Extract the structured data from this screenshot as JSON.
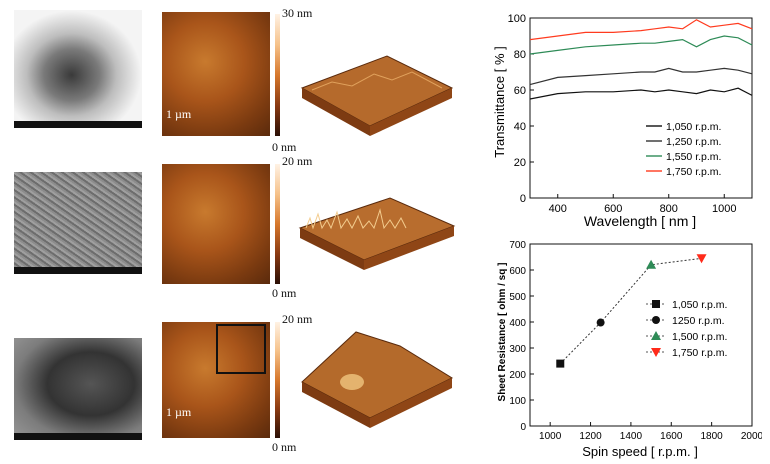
{
  "panels": {
    "afm": [
      {
        "scale_max": "30 nm",
        "scale_min": "0 nm",
        "scale_bar": "1 µm"
      },
      {
        "scale_max": "20 nm",
        "scale_min": "0 nm",
        "scale_bar": ""
      },
      {
        "scale_max": "20 nm",
        "scale_min": "0 nm",
        "scale_bar": "1 µm"
      }
    ]
  },
  "chart_data": [
    {
      "type": "line",
      "xlabel": "Wavelength [ nm ]",
      "ylabel": "Transmittance [ % ]",
      "xlim": [
        300,
        1100
      ],
      "ylim": [
        0,
        100
      ],
      "xticks": [
        400,
        600,
        800,
        1000
      ],
      "yticks": [
        0,
        20,
        40,
        60,
        80,
        100
      ],
      "legend_position": "bottom-right",
      "x": [
        300,
        400,
        500,
        600,
        700,
        750,
        800,
        850,
        900,
        950,
        1000,
        1050,
        1100
      ],
      "series": [
        {
          "name": "1,050 r.p.m.",
          "color": "#111111",
          "values": [
            55,
            58,
            59,
            59,
            60,
            59,
            60,
            59,
            58,
            60,
            59,
            61,
            57
          ]
        },
        {
          "name": "1,250 r.p.m.",
          "color": "#333333",
          "values": [
            63,
            67,
            68,
            69,
            70,
            70,
            72,
            70,
            70,
            71,
            72,
            71,
            69
          ]
        },
        {
          "name": "1,550 r.p.m.",
          "color": "#2e8b57",
          "values": [
            80,
            82,
            84,
            85,
            86,
            86,
            87,
            88,
            84,
            88,
            90,
            89,
            85
          ]
        },
        {
          "name": "1,750 r.p.m.",
          "color": "#ff3b1f",
          "values": [
            88,
            90,
            92,
            92,
            93,
            94,
            95,
            94,
            99,
            95,
            96,
            97,
            94
          ]
        }
      ]
    },
    {
      "type": "scatter",
      "xlabel": "Spin speed [ r.p.m. ]",
      "ylabel": "Sheet Resistance [ ohm / sq ]",
      "xlim": [
        900,
        2000
      ],
      "ylim": [
        0,
        700
      ],
      "xticks": [
        1000,
        1200,
        1400,
        1600,
        1800,
        2000
      ],
      "yticks": [
        0,
        100,
        200,
        300,
        400,
        500,
        600,
        700
      ],
      "legend_position": "center-right",
      "series": [
        {
          "name": "1,050 r.p.m.",
          "marker": "square",
          "color": "#111111",
          "x": 1050,
          "y": 240
        },
        {
          "name": "1250 r.p.m.",
          "marker": "circle",
          "color": "#111111",
          "x": 1250,
          "y": 398
        },
        {
          "name": "1,500 r.p.m.",
          "marker": "triangle-up",
          "color": "#2e8b57",
          "x": 1500,
          "y": 620
        },
        {
          "name": "1,750 r.p.m.",
          "marker": "triangle-down",
          "color": "#ff2a1a",
          "x": 1750,
          "y": 645
        }
      ]
    }
  ]
}
